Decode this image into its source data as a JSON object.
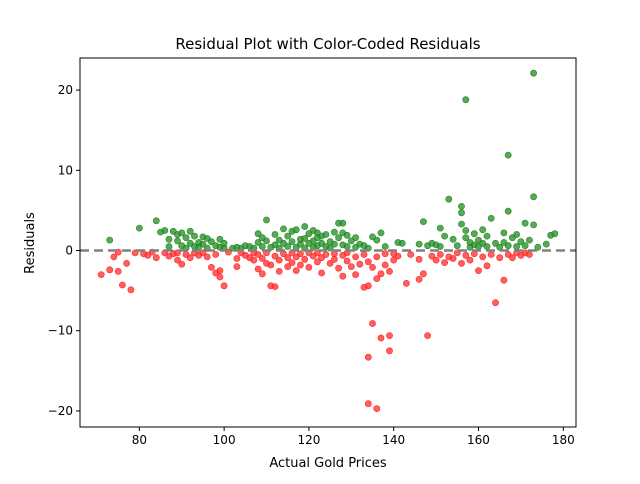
{
  "chart_data": {
    "type": "scatter",
    "title": "Residual Plot with Color-Coded Residuals",
    "xlabel": "Actual Gold Prices",
    "ylabel": "Residuals",
    "xlim": [
      66,
      183
    ],
    "ylim": [
      -22,
      24
    ],
    "xticks": [
      80,
      100,
      120,
      140,
      160,
      180
    ],
    "yticks": [
      -20,
      -10,
      0,
      10,
      20
    ],
    "grid": false,
    "reference_line": {
      "y": 0,
      "style": "dashed",
      "color": "#808080"
    },
    "colors": {
      "positive": "#228b22",
      "negative": "#ff2a2a",
      "edge_alpha": 0.75
    },
    "series": [
      {
        "color": "#228b22",
        "points": [
          [
            73,
            1.3
          ],
          [
            80,
            2.8
          ],
          [
            84,
            3.7
          ],
          [
            85,
            2.3
          ],
          [
            86,
            2.5
          ],
          [
            87,
            1.4
          ],
          [
            87,
            0.5
          ],
          [
            88,
            2.4
          ],
          [
            89,
            2.0
          ],
          [
            89,
            1.2
          ],
          [
            90,
            2.2
          ],
          [
            90,
            0.6
          ],
          [
            91,
            1.6
          ],
          [
            91,
            0.3
          ],
          [
            92,
            2.4
          ],
          [
            92,
            0.9
          ],
          [
            93,
            1.8
          ],
          [
            93,
            0.5
          ],
          [
            94,
            1.0
          ],
          [
            94,
            0.4
          ],
          [
            95,
            1.7
          ],
          [
            95,
            0.8
          ],
          [
            96,
            1.5
          ],
          [
            96,
            0.3
          ],
          [
            97,
            1.1
          ],
          [
            98,
            0.6
          ],
          [
            99,
            1.4
          ],
          [
            99,
            0.4
          ],
          [
            100,
            0.9
          ],
          [
            100,
            0.3
          ],
          [
            102,
            0.3
          ],
          [
            103,
            0.4
          ],
          [
            104,
            0.3
          ],
          [
            105,
            0.6
          ],
          [
            106,
            0.5
          ],
          [
            107,
            0.3
          ],
          [
            108,
            1.0
          ],
          [
            108,
            2.1
          ],
          [
            109,
            1.6
          ],
          [
            109,
            0.5
          ],
          [
            110,
            3.8
          ],
          [
            110,
            1.2
          ],
          [
            111,
            0.4
          ],
          [
            112,
            2.0
          ],
          [
            112,
            0.7
          ],
          [
            113,
            1.3
          ],
          [
            113,
            0.3
          ],
          [
            114,
            2.7
          ],
          [
            114,
            0.9
          ],
          [
            115,
            1.8
          ],
          [
            115,
            0.5
          ],
          [
            116,
            2.4
          ],
          [
            116,
            1.1
          ],
          [
            117,
            2.6
          ],
          [
            117,
            0.4
          ],
          [
            118,
            1.4
          ],
          [
            118,
            0.8
          ],
          [
            119,
            3.0
          ],
          [
            119,
            1.5
          ],
          [
            119,
            0.3
          ],
          [
            120,
            2.1
          ],
          [
            120,
            0.9
          ],
          [
            121,
            2.5
          ],
          [
            121,
            1.2
          ],
          [
            121,
            0.4
          ],
          [
            122,
            2.2
          ],
          [
            122,
            1.6
          ],
          [
            122,
            0.6
          ],
          [
            123,
            1.8
          ],
          [
            123,
            0.9
          ],
          [
            124,
            2.0
          ],
          [
            124,
            0.5
          ],
          [
            125,
            1.1
          ],
          [
            125,
            0.3
          ],
          [
            126,
            2.3
          ],
          [
            126,
            0.8
          ],
          [
            127,
            3.4
          ],
          [
            127,
            1.6
          ],
          [
            128,
            3.4
          ],
          [
            128,
            2.2
          ],
          [
            128,
            0.7
          ],
          [
            129,
            1.9
          ],
          [
            129,
            0.5
          ],
          [
            130,
            1.2
          ],
          [
            131,
            1.6
          ],
          [
            131,
            0.4
          ],
          [
            132,
            0.8
          ],
          [
            133,
            0.6
          ],
          [
            134,
            0.3
          ],
          [
            135,
            1.7
          ],
          [
            136,
            1.3
          ],
          [
            137,
            2.2
          ],
          [
            138,
            0.5
          ],
          [
            141,
            1.0
          ],
          [
            142,
            0.9
          ],
          [
            146,
            0.8
          ],
          [
            147,
            3.6
          ],
          [
            148,
            0.6
          ],
          [
            149,
            0.9
          ],
          [
            150,
            0.7
          ],
          [
            151,
            2.8
          ],
          [
            151,
            0.5
          ],
          [
            152,
            1.8
          ],
          [
            153,
            6.4
          ],
          [
            154,
            1.4
          ],
          [
            155,
            0.6
          ],
          [
            156,
            4.7
          ],
          [
            156,
            5.5
          ],
          [
            156,
            3.3
          ],
          [
            157,
            18.8
          ],
          [
            157,
            2.5
          ],
          [
            157,
            1.6
          ],
          [
            158,
            1.0
          ],
          [
            158,
            0.4
          ],
          [
            159,
            2.1
          ],
          [
            159,
            0.7
          ],
          [
            160,
            1.3
          ],
          [
            160,
            0.5
          ],
          [
            161,
            2.6
          ],
          [
            161,
            0.9
          ],
          [
            162,
            1.8
          ],
          [
            162,
            0.5
          ],
          [
            163,
            4.0
          ],
          [
            164,
            0.9
          ],
          [
            165,
            0.4
          ],
          [
            166,
            2.2
          ],
          [
            166,
            1.0
          ],
          [
            167,
            4.9
          ],
          [
            167,
            11.9
          ],
          [
            167,
            0.6
          ],
          [
            168,
            1.6
          ],
          [
            169,
            2.0
          ],
          [
            169,
            0.5
          ],
          [
            170,
            1.1
          ],
          [
            171,
            3.4
          ],
          [
            171,
            0.6
          ],
          [
            172,
            1.3
          ],
          [
            173,
            3.2
          ],
          [
            173,
            6.7
          ],
          [
            173,
            22.1
          ],
          [
            174,
            0.4
          ],
          [
            176,
            0.8
          ],
          [
            177,
            1.9
          ],
          [
            178,
            2.1
          ]
        ]
      },
      {
        "color": "#ff2a2a",
        "points": [
          [
            71,
            -3.0
          ],
          [
            73,
            -2.4
          ],
          [
            74,
            -0.8
          ],
          [
            75,
            -2.6
          ],
          [
            75,
            -0.2
          ],
          [
            76,
            -4.3
          ],
          [
            77,
            -1.6
          ],
          [
            78,
            -4.9
          ],
          [
            79,
            -0.3
          ],
          [
            81,
            -0.4
          ],
          [
            82,
            -0.6
          ],
          [
            83,
            -0.2
          ],
          [
            84,
            -0.9
          ],
          [
            86,
            -0.3
          ],
          [
            87,
            -0.7
          ],
          [
            88,
            -0.4
          ],
          [
            89,
            -1.2
          ],
          [
            89,
            -0.3
          ],
          [
            90,
            -1.7
          ],
          [
            91,
            -0.5
          ],
          [
            92,
            -0.9
          ],
          [
            93,
            -0.3
          ],
          [
            94,
            -0.6
          ],
          [
            95,
            -0.3
          ],
          [
            96,
            -0.8
          ],
          [
            97,
            -2.1
          ],
          [
            98,
            -2.8
          ],
          [
            98,
            -0.5
          ],
          [
            99,
            -2.5
          ],
          [
            99,
            -3.3
          ],
          [
            100,
            -4.4
          ],
          [
            101,
            -0.2
          ],
          [
            103,
            -1.0
          ],
          [
            103,
            -2.0
          ],
          [
            104,
            -0.3
          ],
          [
            105,
            -0.6
          ],
          [
            106,
            -0.9
          ],
          [
            107,
            -1.2
          ],
          [
            107,
            -0.3
          ],
          [
            108,
            -2.3
          ],
          [
            108,
            -0.5
          ],
          [
            109,
            -2.9
          ],
          [
            109,
            -1.0
          ],
          [
            110,
            -1.6
          ],
          [
            110,
            -0.3
          ],
          [
            111,
            -4.4
          ],
          [
            111,
            -1.8
          ],
          [
            112,
            -4.5
          ],
          [
            112,
            -0.7
          ],
          [
            113,
            -2.6
          ],
          [
            113,
            -1.2
          ],
          [
            114,
            -0.4
          ],
          [
            115,
            -0.9
          ],
          [
            115,
            -2.0
          ],
          [
            116,
            -0.3
          ],
          [
            116,
            -1.5
          ],
          [
            117,
            -2.5
          ],
          [
            117,
            -0.8
          ],
          [
            118,
            -0.4
          ],
          [
            118,
            -1.8
          ],
          [
            119,
            -1.1
          ],
          [
            120,
            -0.3
          ],
          [
            120,
            -2.1
          ],
          [
            121,
            -0.7
          ],
          [
            122,
            -1.4
          ],
          [
            122,
            -0.3
          ],
          [
            123,
            -2.8
          ],
          [
            123,
            -0.9
          ],
          [
            124,
            -0.5
          ],
          [
            125,
            -1.6
          ],
          [
            126,
            -0.4
          ],
          [
            126,
            -1.1
          ],
          [
            127,
            -2.2
          ],
          [
            128,
            -0.6
          ],
          [
            128,
            -3.2
          ],
          [
            129,
            -1.3
          ],
          [
            129,
            -0.3
          ],
          [
            130,
            -2.0
          ],
          [
            131,
            -0.8
          ],
          [
            131,
            -3.0
          ],
          [
            132,
            -1.7
          ],
          [
            133,
            -4.6
          ],
          [
            133,
            -0.5
          ],
          [
            134,
            -13.3
          ],
          [
            134,
            -4.4
          ],
          [
            134,
            -19.1
          ],
          [
            134,
            -1.4
          ],
          [
            135,
            -9.1
          ],
          [
            135,
            -2.1
          ],
          [
            136,
            -19.7
          ],
          [
            136,
            -3.5
          ],
          [
            136,
            -0.8
          ],
          [
            137,
            -10.9
          ],
          [
            137,
            -2.9
          ],
          [
            138,
            -1.8
          ],
          [
            138,
            -0.4
          ],
          [
            139,
            -10.6
          ],
          [
            139,
            -12.5
          ],
          [
            139,
            -2.6
          ],
          [
            140,
            -1.2
          ],
          [
            140,
            -0.4
          ],
          [
            141,
            -0.7
          ],
          [
            143,
            -4.1
          ],
          [
            144,
            -0.5
          ],
          [
            146,
            -3.6
          ],
          [
            146,
            -1.1
          ],
          [
            147,
            -2.9
          ],
          [
            148,
            -10.6
          ],
          [
            149,
            -0.7
          ],
          [
            150,
            -1.2
          ],
          [
            151,
            -0.5
          ],
          [
            152,
            -1.5
          ],
          [
            153,
            -0.8
          ],
          [
            154,
            -1.0
          ],
          [
            155,
            -0.3
          ],
          [
            156,
            -1.6
          ],
          [
            157,
            -0.6
          ],
          [
            158,
            -1.2
          ],
          [
            159,
            -0.4
          ],
          [
            160,
            -2.5
          ],
          [
            161,
            -0.8
          ],
          [
            162,
            -1.9
          ],
          [
            163,
            -0.5
          ],
          [
            164,
            -6.5
          ],
          [
            165,
            -0.9
          ],
          [
            166,
            -3.7
          ],
          [
            167,
            -0.5
          ],
          [
            168,
            -0.9
          ],
          [
            169,
            -0.3
          ],
          [
            170,
            -0.6
          ],
          [
            171,
            -0.3
          ],
          [
            172,
            -0.5
          ]
        ]
      }
    ]
  }
}
